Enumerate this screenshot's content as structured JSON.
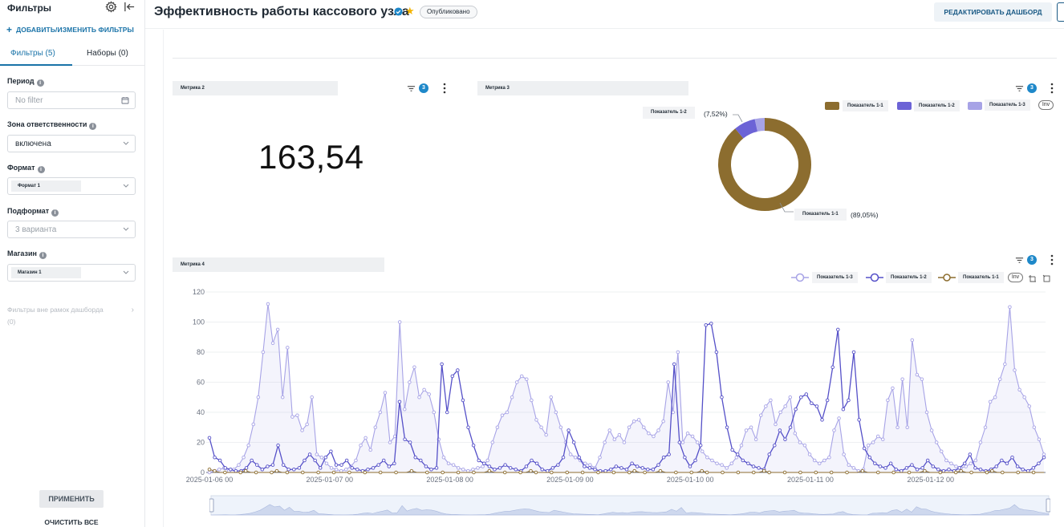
{
  "sidebar": {
    "title": "Фильтры",
    "add_filters": "ДОБАВИТЬ/ИЗМЕНИТЬ ФИЛЬТРЫ",
    "tabs": [
      {
        "label": "Фильтры (5)",
        "active": true
      },
      {
        "label": "Наборы (0)",
        "active": false
      }
    ],
    "filters": {
      "period": {
        "label": "Период",
        "placeholder": "No filter"
      },
      "zone": {
        "label": "Зона ответственности",
        "value": "включена"
      },
      "format": {
        "label": "Формат",
        "tag": "Формат 1"
      },
      "subformat": {
        "label": "Подформат",
        "placeholder": "3 варианта"
      },
      "store": {
        "label": "Магазин",
        "tag": "Магазин 1"
      }
    },
    "outside_filters": "Фильтры вне рамок дашборда",
    "outside_count": "(0)",
    "apply": "ПРИМЕНИТЬ",
    "clear": "ОЧИСТИТЬ ВСЕ"
  },
  "header": {
    "title": "Эффективность работы кассового узла",
    "status": "Опубликовано",
    "edit_button": "РЕДАКТИРОВАТЬ ДАШБОРД"
  },
  "cards": {
    "metric2": {
      "title": "Метрика 2",
      "filter_count": "3",
      "value": "163,54"
    },
    "metric3": {
      "title": "Метрика 3",
      "filter_count": "3",
      "legend": [
        "Показатель 1-1",
        "Показатель 1-2",
        "Показатель 1-3"
      ],
      "inv": "Inv",
      "labels": {
        "s2": {
          "name": "Показатель 1-2",
          "pct": "(7,52%)"
        },
        "s1": {
          "name": "Показатель 1-1",
          "pct": "(89,05%)"
        }
      }
    },
    "metric4": {
      "title": "Метрика 4",
      "filter_count": "3",
      "legend": [
        "Показатель 1-3",
        "Показатель 1-2",
        "Показатель 1-1"
      ],
      "inv": "Inv"
    }
  },
  "colors": {
    "s1": "#8c6d2f",
    "s2": "#6c63d6",
    "s3": "#a7a3e6",
    "accent": "#1a73a8"
  },
  "chart_data": [
    {
      "type": "pie",
      "series": [
        {
          "name": "Показатель 1-1",
          "value": 89.05,
          "color": "#8c6d2f"
        },
        {
          "name": "Показатель 1-2",
          "value": 7.52,
          "color": "#6c63d6"
        },
        {
          "name": "Показатель 1-3",
          "value": 3.43,
          "color": "#a7a3e6"
        }
      ]
    },
    {
      "type": "line",
      "ylim": [
        0,
        120
      ],
      "yticks": [
        0,
        20,
        40,
        60,
        80,
        100,
        120
      ],
      "xticks": [
        "2025-01-06 00",
        "2025-01-07 00",
        "2025-01-08 00",
        "2025-01-09 00",
        "2025-01-10 00",
        "2025-01-11 00",
        "2025-01-12 00"
      ],
      "x_hours_start": 0,
      "x_hours_end": 162,
      "series": [
        {
          "name": "Показатель 1-3",
          "color": "#a7a3e6",
          "values": [
            0,
            1,
            2,
            3,
            1,
            2,
            5,
            10,
            18,
            32,
            50,
            80,
            112,
            86,
            95,
            50,
            83,
            37,
            38,
            28,
            32,
            50,
            12,
            10,
            6,
            3,
            2,
            1,
            2,
            4,
            8,
            18,
            23,
            15,
            30,
            40,
            53,
            20,
            24,
            100,
            42,
            60,
            70,
            50,
            55,
            52,
            40,
            22,
            10,
            6,
            5,
            3,
            2,
            1,
            2,
            3,
            4,
            8,
            20,
            30,
            38,
            40,
            50,
            60,
            64,
            62,
            48,
            35,
            30,
            25,
            50,
            40,
            30,
            20,
            12,
            10,
            8,
            6,
            5,
            3,
            10,
            20,
            28,
            22,
            25,
            20,
            30,
            34,
            35,
            30,
            26,
            24,
            28,
            34,
            60,
            40,
            80,
            20,
            26,
            24,
            20,
            14,
            10,
            8,
            6,
            5,
            3,
            6,
            10,
            18,
            28,
            30,
            22,
            38,
            44,
            48,
            32,
            40,
            44,
            50,
            26,
            20,
            18,
            12,
            8,
            6,
            8,
            10,
            28,
            36,
            12,
            5,
            3,
            1,
            2,
            18,
            20,
            24,
            22,
            48,
            56,
            30,
            62,
            30,
            88,
            65,
            62,
            40,
            28,
            20,
            14,
            8,
            6,
            4,
            3,
            4,
            6,
            8,
            20,
            30,
            47,
            50,
            62,
            72,
            110,
            68,
            55,
            50,
            44,
            30,
            22,
            12
          ],
          "area": true
        },
        {
          "name": "Показатель 1-2",
          "color": "#5550c8",
          "values": [
            23,
            10,
            8,
            3,
            2,
            1,
            1,
            3,
            8,
            5,
            2,
            4,
            5,
            18,
            5,
            2,
            2,
            3,
            8,
            12,
            8,
            3,
            10,
            14,
            5,
            5,
            8,
            3,
            2,
            1,
            2,
            3,
            5,
            8,
            4,
            6,
            47,
            22,
            20,
            10,
            8,
            4,
            2,
            3,
            72,
            40,
            64,
            68,
            48,
            30,
            18,
            8,
            6,
            4,
            2,
            3,
            5,
            3,
            2,
            1,
            4,
            8,
            6,
            2,
            1,
            3,
            5,
            10,
            28,
            20,
            10,
            4,
            3,
            2,
            1,
            1,
            2,
            4,
            3,
            2,
            6,
            4,
            3,
            2,
            2,
            5,
            10,
            12,
            72,
            20,
            10,
            4,
            8,
            18,
            98,
            99,
            80,
            50,
            30,
            15,
            12,
            8,
            6,
            4,
            3,
            2,
            12,
            18,
            28,
            22,
            30,
            42,
            50,
            52,
            46,
            44,
            35,
            48,
            70,
            95,
            42,
            48,
            80,
            35,
            16,
            10,
            6,
            4,
            3,
            6,
            2,
            1,
            3,
            5,
            2,
            3,
            8,
            4,
            2,
            1,
            2,
            1,
            3,
            6,
            12,
            3,
            2,
            1,
            2,
            4,
            8,
            6,
            10,
            4,
            2,
            1,
            3,
            6,
            10
          ],
          "area": false
        },
        {
          "name": "Показатель 1-1",
          "color": "#8c6d2f",
          "values": [
            2,
            1,
            0,
            0,
            0,
            0,
            0,
            1,
            0,
            0,
            0,
            0,
            0,
            1,
            0,
            0,
            0,
            0,
            0,
            0,
            0,
            0,
            0,
            0,
            0,
            0,
            0,
            0,
            0,
            0,
            0,
            0,
            0,
            0,
            0,
            0,
            0,
            0,
            0,
            1,
            0,
            0,
            0,
            0,
            0,
            0,
            0,
            0,
            0,
            0,
            0,
            0,
            0,
            0,
            1,
            0,
            0,
            0,
            0,
            0,
            0,
            0,
            1,
            0,
            0,
            0,
            0,
            0,
            0,
            0,
            0,
            0,
            0,
            0,
            0,
            0,
            0,
            0,
            0,
            0,
            0,
            0,
            1,
            0,
            0,
            0,
            0,
            1,
            0,
            0,
            0,
            0,
            0,
            0,
            0,
            1,
            0,
            0,
            0,
            0,
            0,
            0,
            0,
            0,
            0,
            0,
            0,
            1,
            0,
            0,
            0,
            0,
            0,
            0,
            0,
            0,
            0,
            0,
            0,
            0,
            0,
            0,
            0,
            0,
            0,
            0,
            1,
            0,
            0,
            0,
            0,
            0,
            0,
            0,
            0,
            0,
            0,
            0,
            1,
            0,
            0,
            0,
            0,
            0,
            0,
            1,
            0,
            0,
            0,
            0,
            0,
            1,
            0,
            0,
            0,
            0,
            0,
            0,
            0,
            0,
            0,
            0
          ],
          "area": false
        }
      ]
    }
  ]
}
